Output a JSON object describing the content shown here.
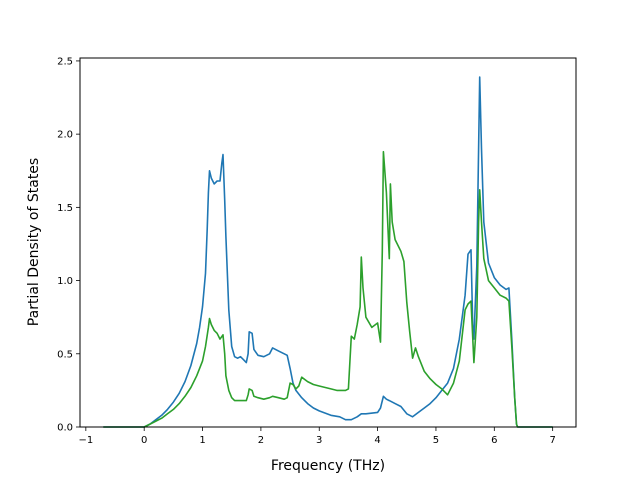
{
  "chart_data": {
    "type": "line",
    "title": "",
    "xlabel": "Frequency (THz)",
    "ylabel": "Partial Density of States",
    "xlim": [
      -1.1,
      7.4
    ],
    "ylim": [
      0,
      2.52
    ],
    "x_ticks": [
      -1,
      0,
      1,
      2,
      3,
      4,
      5,
      6,
      7
    ],
    "x_tick_labels": [
      "−1",
      "0",
      "1",
      "2",
      "3",
      "4",
      "5",
      "6",
      "7"
    ],
    "y_ticks": [
      0.0,
      0.5,
      1.0,
      1.5,
      2.0,
      2.5
    ],
    "y_tick_labels": [
      "0.0",
      "0.5",
      "1.0",
      "1.5",
      "2.0",
      "2.5"
    ],
    "grid": false,
    "legend": null,
    "series": [
      {
        "color": "#1f77b4",
        "points": [
          [
            -0.7,
            0.0
          ],
          [
            -0.3,
            0.0
          ],
          [
            0.0,
            0.0
          ],
          [
            0.1,
            0.02
          ],
          [
            0.2,
            0.05
          ],
          [
            0.3,
            0.08
          ],
          [
            0.4,
            0.12
          ],
          [
            0.5,
            0.17
          ],
          [
            0.6,
            0.23
          ],
          [
            0.7,
            0.31
          ],
          [
            0.8,
            0.42
          ],
          [
            0.9,
            0.57
          ],
          [
            0.95,
            0.68
          ],
          [
            1.0,
            0.82
          ],
          [
            1.05,
            1.05
          ],
          [
            1.08,
            1.35
          ],
          [
            1.1,
            1.6
          ],
          [
            1.12,
            1.75
          ],
          [
            1.15,
            1.7
          ],
          [
            1.2,
            1.66
          ],
          [
            1.25,
            1.68
          ],
          [
            1.3,
            1.68
          ],
          [
            1.33,
            1.8
          ],
          [
            1.35,
            1.86
          ],
          [
            1.38,
            1.55
          ],
          [
            1.4,
            1.3
          ],
          [
            1.45,
            0.8
          ],
          [
            1.5,
            0.55
          ],
          [
            1.55,
            0.48
          ],
          [
            1.6,
            0.47
          ],
          [
            1.65,
            0.48
          ],
          [
            1.7,
            0.46
          ],
          [
            1.75,
            0.44
          ],
          [
            1.78,
            0.5
          ],
          [
            1.8,
            0.65
          ],
          [
            1.85,
            0.64
          ],
          [
            1.88,
            0.53
          ],
          [
            1.95,
            0.49
          ],
          [
            2.05,
            0.48
          ],
          [
            2.15,
            0.5
          ],
          [
            2.2,
            0.54
          ],
          [
            2.3,
            0.52
          ],
          [
            2.4,
            0.5
          ],
          [
            2.45,
            0.49
          ],
          [
            2.5,
            0.4
          ],
          [
            2.55,
            0.3
          ],
          [
            2.6,
            0.25
          ],
          [
            2.7,
            0.2
          ],
          [
            2.8,
            0.16
          ],
          [
            2.9,
            0.13
          ],
          [
            3.0,
            0.11
          ],
          [
            3.2,
            0.08
          ],
          [
            3.35,
            0.07
          ],
          [
            3.45,
            0.05
          ],
          [
            3.55,
            0.05
          ],
          [
            3.65,
            0.07
          ],
          [
            3.72,
            0.09
          ],
          [
            3.8,
            0.09
          ],
          [
            4.0,
            0.1
          ],
          [
            4.05,
            0.13
          ],
          [
            4.1,
            0.21
          ],
          [
            4.15,
            0.19
          ],
          [
            4.2,
            0.18
          ],
          [
            4.3,
            0.16
          ],
          [
            4.4,
            0.14
          ],
          [
            4.5,
            0.09
          ],
          [
            4.6,
            0.07
          ],
          [
            4.7,
            0.1
          ],
          [
            4.8,
            0.13
          ],
          [
            4.9,
            0.16
          ],
          [
            5.0,
            0.2
          ],
          [
            5.1,
            0.25
          ],
          [
            5.2,
            0.3
          ],
          [
            5.3,
            0.4
          ],
          [
            5.4,
            0.6
          ],
          [
            5.5,
            0.9
          ],
          [
            5.55,
            1.18
          ],
          [
            5.6,
            1.21
          ],
          [
            5.63,
            0.7
          ],
          [
            5.65,
            0.6
          ],
          [
            5.7,
            1.1
          ],
          [
            5.73,
            1.9
          ],
          [
            5.75,
            2.39
          ],
          [
            5.78,
            1.9
          ],
          [
            5.82,
            1.4
          ],
          [
            5.9,
            1.12
          ],
          [
            6.0,
            1.02
          ],
          [
            6.1,
            0.97
          ],
          [
            6.2,
            0.94
          ],
          [
            6.25,
            0.95
          ],
          [
            6.3,
            0.6
          ],
          [
            6.35,
            0.2
          ],
          [
            6.38,
            0.02
          ],
          [
            6.4,
            0.0
          ],
          [
            7.0,
            0.0
          ]
        ]
      },
      {
        "color": "#2ca02c",
        "points": [
          [
            -0.7,
            0.0
          ],
          [
            -0.3,
            0.0
          ],
          [
            0.0,
            0.0
          ],
          [
            0.1,
            0.02
          ],
          [
            0.2,
            0.04
          ],
          [
            0.3,
            0.06
          ],
          [
            0.4,
            0.09
          ],
          [
            0.5,
            0.12
          ],
          [
            0.6,
            0.16
          ],
          [
            0.7,
            0.21
          ],
          [
            0.8,
            0.27
          ],
          [
            0.9,
            0.35
          ],
          [
            1.0,
            0.45
          ],
          [
            1.05,
            0.55
          ],
          [
            1.1,
            0.68
          ],
          [
            1.12,
            0.74
          ],
          [
            1.15,
            0.7
          ],
          [
            1.2,
            0.66
          ],
          [
            1.25,
            0.64
          ],
          [
            1.3,
            0.6
          ],
          [
            1.35,
            0.63
          ],
          [
            1.38,
            0.5
          ],
          [
            1.4,
            0.35
          ],
          [
            1.45,
            0.25
          ],
          [
            1.5,
            0.2
          ],
          [
            1.55,
            0.18
          ],
          [
            1.6,
            0.18
          ],
          [
            1.7,
            0.18
          ],
          [
            1.75,
            0.18
          ],
          [
            1.78,
            0.22
          ],
          [
            1.8,
            0.26
          ],
          [
            1.85,
            0.25
          ],
          [
            1.88,
            0.21
          ],
          [
            1.95,
            0.2
          ],
          [
            2.05,
            0.19
          ],
          [
            2.15,
            0.2
          ],
          [
            2.2,
            0.21
          ],
          [
            2.3,
            0.2
          ],
          [
            2.4,
            0.19
          ],
          [
            2.45,
            0.2
          ],
          [
            2.5,
            0.3
          ],
          [
            2.55,
            0.29
          ],
          [
            2.6,
            0.26
          ],
          [
            2.65,
            0.28
          ],
          [
            2.7,
            0.34
          ],
          [
            2.8,
            0.31
          ],
          [
            2.9,
            0.29
          ],
          [
            3.0,
            0.28
          ],
          [
            3.2,
            0.26
          ],
          [
            3.3,
            0.25
          ],
          [
            3.45,
            0.25
          ],
          [
            3.5,
            0.26
          ],
          [
            3.55,
            0.62
          ],
          [
            3.6,
            0.6
          ],
          [
            3.65,
            0.7
          ],
          [
            3.7,
            0.82
          ],
          [
            3.72,
            1.16
          ],
          [
            3.75,
            0.95
          ],
          [
            3.8,
            0.75
          ],
          [
            3.9,
            0.68
          ],
          [
            4.0,
            0.71
          ],
          [
            4.05,
            0.58
          ],
          [
            4.08,
            1.2
          ],
          [
            4.1,
            1.88
          ],
          [
            4.15,
            1.6
          ],
          [
            4.2,
            1.15
          ],
          [
            4.22,
            1.66
          ],
          [
            4.25,
            1.4
          ],
          [
            4.3,
            1.28
          ],
          [
            4.4,
            1.2
          ],
          [
            4.45,
            1.13
          ],
          [
            4.5,
            0.85
          ],
          [
            4.55,
            0.65
          ],
          [
            4.6,
            0.47
          ],
          [
            4.65,
            0.54
          ],
          [
            4.7,
            0.48
          ],
          [
            4.8,
            0.38
          ],
          [
            4.9,
            0.33
          ],
          [
            5.0,
            0.29
          ],
          [
            5.1,
            0.26
          ],
          [
            5.2,
            0.22
          ],
          [
            5.3,
            0.3
          ],
          [
            5.4,
            0.45
          ],
          [
            5.5,
            0.8
          ],
          [
            5.55,
            0.84
          ],
          [
            5.6,
            0.86
          ],
          [
            5.65,
            0.44
          ],
          [
            5.7,
            0.75
          ],
          [
            5.73,
            1.4
          ],
          [
            5.75,
            1.62
          ],
          [
            5.78,
            1.4
          ],
          [
            5.82,
            1.15
          ],
          [
            5.9,
            1.0
          ],
          [
            6.0,
            0.95
          ],
          [
            6.1,
            0.9
          ],
          [
            6.2,
            0.88
          ],
          [
            6.25,
            0.86
          ],
          [
            6.3,
            0.55
          ],
          [
            6.35,
            0.2
          ],
          [
            6.38,
            0.02
          ],
          [
            6.4,
            0.0
          ],
          [
            7.0,
            0.0
          ]
        ]
      }
    ]
  }
}
